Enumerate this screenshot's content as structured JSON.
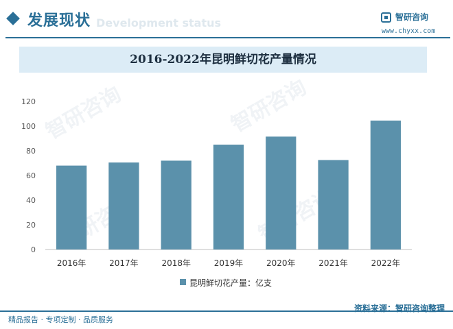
{
  "header": {
    "section_title": "发展现状",
    "section_subtitle": "Development status",
    "logo_name": "智研咨询",
    "logo_url": "www.chyxx.com"
  },
  "watermark": {
    "text": "智研咨询"
  },
  "source": {
    "text": "资料来源：智研咨询整理"
  },
  "footer": {
    "text": "精品报告 · 专项定制 · 品质服务"
  },
  "colors": {
    "bar": "#5b91ab",
    "accent": "#2a6f97",
    "title_band": "#dcecf6"
  },
  "chart_data": {
    "type": "bar",
    "title": "2016-2022年昆明鲜切花产量情况",
    "categories": [
      "2016年",
      "2017年",
      "2018年",
      "2019年",
      "2020年",
      "2021年",
      "2022年"
    ],
    "series": [
      {
        "name": "昆明鲜切花产量：亿支",
        "values": [
          68,
          70.5,
          72,
          85,
          91.5,
          72.5,
          104.5
        ]
      }
    ],
    "ylim": [
      0,
      120
    ],
    "yticks": [
      0,
      20,
      40,
      60,
      80,
      100,
      120
    ],
    "grid": false,
    "legend": "bottom"
  }
}
